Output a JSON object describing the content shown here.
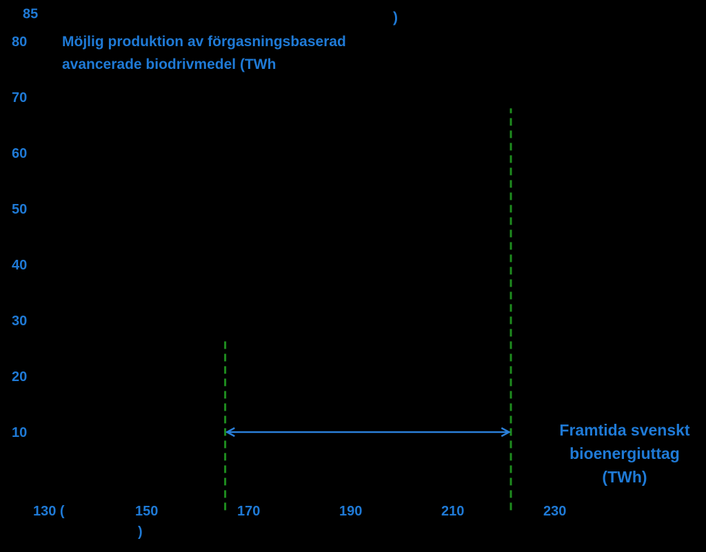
{
  "colors": {
    "background": "#000000",
    "text": "#1f7ad6",
    "arrow": "#2b7fd8",
    "dashed_line": "#1e8c1e"
  },
  "chart_data": {
    "type": "line",
    "title": "",
    "xlabel": "",
    "ylabel": "",
    "ylabel_lines": [
      "Möjlig produktion av förgasningsbaserad",
      "avancerade biodrivmedel (TWh"
    ],
    "ylabel_closing_paren": ")",
    "xlabel_lines": [
      "Framtida svenskt",
      "bioenergiuttag",
      "(TWh)"
    ],
    "xlim": [
      130,
      240
    ],
    "ylim": [
      0,
      85
    ],
    "x_ticks": [
      {
        "value": 130,
        "label": "130 ("
      },
      {
        "value": 150,
        "label": "150"
      },
      {
        "value": 170,
        "label": "170"
      },
      {
        "value": 190,
        "label": "190"
      },
      {
        "value": 210,
        "label": "210"
      },
      {
        "value": 230,
        "label": "230"
      }
    ],
    "x_tick_stray": ")",
    "y_ticks": [
      {
        "value": 85,
        "label": "85"
      },
      {
        "value": 80,
        "label": "80"
      },
      {
        "value": 70,
        "label": "70"
      },
      {
        "value": 60,
        "label": "60"
      },
      {
        "value": 50,
        "label": "50"
      },
      {
        "value": 40,
        "label": "40"
      },
      {
        "value": 30,
        "label": "30"
      },
      {
        "value": 20,
        "label": "20"
      },
      {
        "value": 10,
        "label": "10"
      }
    ],
    "series": [
      {
        "style": "dashed",
        "color": "#1e8c1e",
        "x": [
          164,
          164
        ],
        "y": [
          -4,
          27
        ]
      },
      {
        "style": "dashed",
        "color": "#1e8c1e",
        "x": [
          220,
          220
        ],
        "y": [
          -4,
          68
        ]
      }
    ],
    "arrow": {
      "from": [
        164.5,
        10
      ],
      "to": [
        219.5,
        10
      ],
      "double_headed": true,
      "color": "#2b7fd8"
    },
    "grid": false,
    "legend": "none"
  }
}
